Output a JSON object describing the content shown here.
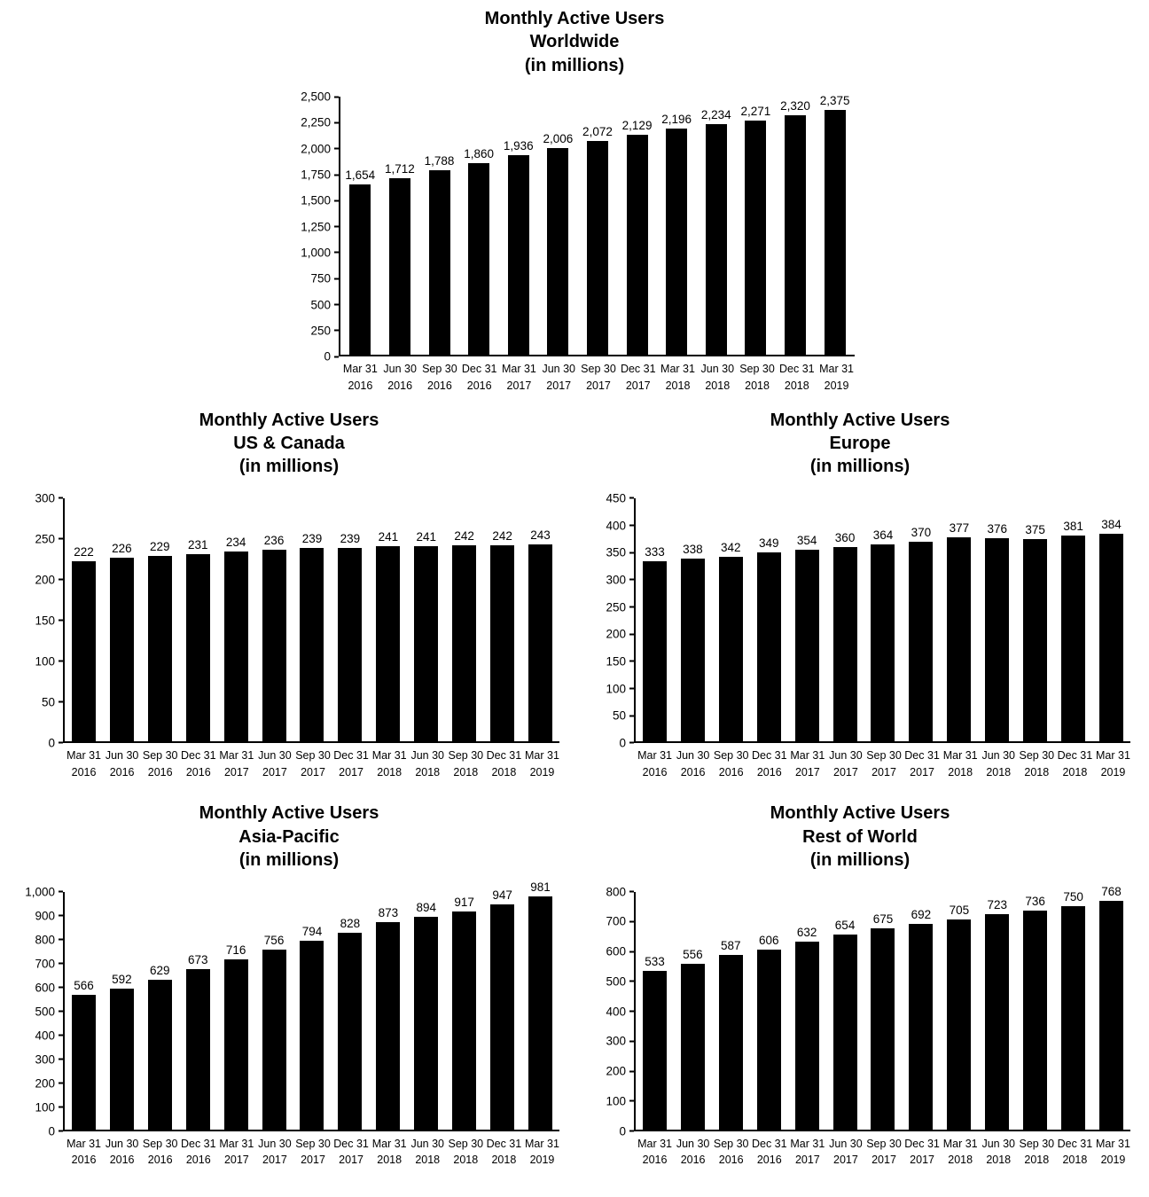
{
  "page": {
    "background": "#ffffff",
    "bar_color": "#000000"
  },
  "chart_data": [
    {
      "type": "bar",
      "title": "Monthly Active Users Worldwide (in millions)",
      "title_lines": [
        "Monthly Active Users",
        "Worldwide",
        "(in millions)"
      ],
      "categories": [
        "Mar 31 2016",
        "Jun 30 2016",
        "Sep 30 2016",
        "Dec 31 2016",
        "Mar 31 2017",
        "Jun 30 2017",
        "Sep 30 2017",
        "Dec 31 2017",
        "Mar 31 2018",
        "Jun 30 2018",
        "Sep 30 2018",
        "Dec 31 2018",
        "Mar 31 2019"
      ],
      "values": [
        1654,
        1712,
        1788,
        1860,
        1936,
        2006,
        2072,
        2129,
        2196,
        2234,
        2271,
        2320,
        2375
      ],
      "xlabel": "",
      "ylabel": "",
      "ylim": [
        0,
        2500
      ],
      "ytick_step": 250,
      "grid": false,
      "legend": "none",
      "bar_color": "#000000"
    },
    {
      "type": "bar",
      "title": "Monthly Active Users US & Canada (in millions)",
      "title_lines": [
        "Monthly Active Users",
        "US & Canada",
        "(in millions)"
      ],
      "categories": [
        "Mar 31 2016",
        "Jun 30 2016",
        "Sep 30 2016",
        "Dec 31 2016",
        "Mar 31 2017",
        "Jun 30 2017",
        "Sep 30 2017",
        "Dec 31 2017",
        "Mar 31 2018",
        "Jun 30 2018",
        "Sep 30 2018",
        "Dec 31 2018",
        "Mar 31 2019"
      ],
      "values": [
        222,
        226,
        229,
        231,
        234,
        236,
        239,
        239,
        241,
        241,
        242,
        242,
        243
      ],
      "xlabel": "",
      "ylabel": "",
      "ylim": [
        0,
        300
      ],
      "ytick_step": 50,
      "grid": false,
      "legend": "none",
      "bar_color": "#000000"
    },
    {
      "type": "bar",
      "title": "Monthly Active Users Europe (in millions)",
      "title_lines": [
        "Monthly Active Users",
        "Europe",
        "(in millions)"
      ],
      "categories": [
        "Mar 31 2016",
        "Jun 30 2016",
        "Sep 30 2016",
        "Dec 31 2016",
        "Mar 31 2017",
        "Jun 30 2017",
        "Sep 30 2017",
        "Dec 31 2017",
        "Mar 31 2018",
        "Jun 30 2018",
        "Sep 30 2018",
        "Dec 31 2018",
        "Mar 31 2019"
      ],
      "values": [
        333,
        338,
        342,
        349,
        354,
        360,
        364,
        370,
        377,
        376,
        375,
        381,
        384
      ],
      "xlabel": "",
      "ylabel": "",
      "ylim": [
        0,
        450
      ],
      "ytick_step": 50,
      "grid": false,
      "legend": "none",
      "bar_color": "#000000"
    },
    {
      "type": "bar",
      "title": "Monthly Active Users Asia-Pacific (in millions)",
      "title_lines": [
        "Monthly Active Users",
        "Asia-Pacific",
        "(in millions)"
      ],
      "categories": [
        "Mar 31 2016",
        "Jun 30 2016",
        "Sep 30 2016",
        "Dec 31 2016",
        "Mar 31 2017",
        "Jun 30 2017",
        "Sep 30 2017",
        "Dec 31 2017",
        "Mar 31 2018",
        "Jun 30 2018",
        "Sep 30 2018",
        "Dec 31 2018",
        "Mar 31 2019"
      ],
      "values": [
        566,
        592,
        629,
        673,
        716,
        756,
        794,
        828,
        873,
        894,
        917,
        947,
        981
      ],
      "xlabel": "",
      "ylabel": "",
      "ylim": [
        0,
        1000
      ],
      "ytick_step": 100,
      "grid": false,
      "legend": "none",
      "bar_color": "#000000"
    },
    {
      "type": "bar",
      "title": "Monthly Active Users Rest of World (in millions)",
      "title_lines": [
        "Monthly Active Users",
        "Rest of World",
        "(in millions)"
      ],
      "categories": [
        "Mar 31 2016",
        "Jun 30 2016",
        "Sep 30 2016",
        "Dec 31 2016",
        "Mar 31 2017",
        "Jun 30 2017",
        "Sep 30 2017",
        "Dec 31 2017",
        "Mar 31 2018",
        "Jun 30 2018",
        "Sep 30 2018",
        "Dec 31 2018",
        "Mar 31 2019"
      ],
      "values": [
        533,
        556,
        587,
        606,
        632,
        654,
        675,
        692,
        705,
        723,
        736,
        750,
        768
      ],
      "xlabel": "",
      "ylabel": "",
      "ylim": [
        0,
        800
      ],
      "ytick_step": 100,
      "grid": false,
      "legend": "none",
      "bar_color": "#000000"
    }
  ]
}
